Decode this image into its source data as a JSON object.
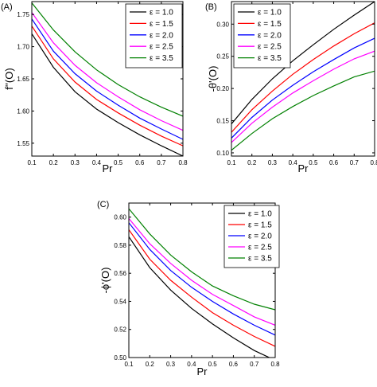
{
  "chart_data": [
    {
      "type": "line",
      "panel_label": "(A)",
      "xlabel": "Pr",
      "ylabel": "f''(O)",
      "xlim": [
        0.1,
        0.8
      ],
      "ylim": [
        1.53,
        1.77
      ],
      "xticks": [
        "0.1",
        "0.2",
        "0.3",
        "0.4",
        "0.5",
        "0.6",
        "0.7",
        "0.8"
      ],
      "yticks": [
        1.55,
        1.6,
        1.65,
        1.7,
        1.75
      ],
      "ytick_labels": [
        "1.55",
        "1.60",
        "1.65",
        "1.70",
        "1.75"
      ],
      "legend_position": "top-right",
      "x": [
        0.1,
        0.2,
        0.3,
        0.4,
        0.5,
        0.6,
        0.7,
        0.8
      ],
      "series": [
        {
          "name": "ε = 1.0",
          "color": "#000000",
          "values": [
            1.72,
            1.668,
            1.63,
            1.603,
            1.582,
            1.563,
            1.546,
            1.53
          ]
        },
        {
          "name": "ε = 1.5",
          "color": "#ff0000",
          "values": [
            1.732,
            1.681,
            1.645,
            1.618,
            1.597,
            1.578,
            1.561,
            1.546
          ]
        },
        {
          "name": "ε = 2.0",
          "color": "#0000ff",
          "values": [
            1.743,
            1.693,
            1.658,
            1.631,
            1.609,
            1.589,
            1.572,
            1.556
          ]
        },
        {
          "name": "ε = 2.5",
          "color": "#ff00ff",
          "values": [
            1.753,
            1.706,
            1.671,
            1.644,
            1.622,
            1.602,
            1.585,
            1.57
          ]
        },
        {
          "name": "ε = 3.5",
          "color": "#008000",
          "values": [
            1.768,
            1.726,
            1.692,
            1.664,
            1.641,
            1.622,
            1.606,
            1.592
          ]
        }
      ]
    },
    {
      "type": "line",
      "panel_label": "(B)",
      "xlabel": "Pr",
      "ylabel": "-θ'(O)",
      "xlim": [
        0.1,
        0.8
      ],
      "ylim": [
        0.095,
        0.335
      ],
      "xticks": [
        "0.1",
        "0.2",
        "0.3",
        "0.4",
        "0.5",
        "0.6",
        "0.7",
        "0.8"
      ],
      "yticks": [
        0.1,
        0.15,
        0.2,
        0.25,
        0.3
      ],
      "ytick_labels": [
        "0.10",
        "0.15",
        "0.20",
        "0.25",
        "0.30"
      ],
      "legend_position": "top-left",
      "x": [
        0.1,
        0.2,
        0.3,
        0.4,
        0.5,
        0.6,
        0.7,
        0.8
      ],
      "series": [
        {
          "name": "ε = 1.0",
          "color": "#000000",
          "values": [
            0.145,
            0.183,
            0.215,
            0.243,
            0.268,
            0.292,
            0.314,
            0.335
          ]
        },
        {
          "name": "ε = 1.5",
          "color": "#ff0000",
          "values": [
            0.132,
            0.167,
            0.196,
            0.222,
            0.245,
            0.266,
            0.285,
            0.302
          ]
        },
        {
          "name": "ε = 2.0",
          "color": "#0000ff",
          "values": [
            0.123,
            0.155,
            0.182,
            0.205,
            0.226,
            0.245,
            0.263,
            0.278
          ]
        },
        {
          "name": "ε = 2.5",
          "color": "#ff00ff",
          "values": [
            0.116,
            0.146,
            0.171,
            0.193,
            0.212,
            0.23,
            0.246,
            0.258
          ]
        },
        {
          "name": "ε = 3.5",
          "color": "#008000",
          "values": [
            0.104,
            0.13,
            0.153,
            0.172,
            0.189,
            0.204,
            0.218,
            0.227
          ]
        }
      ]
    },
    {
      "type": "line",
      "panel_label": "(C)",
      "xlabel": "Pr",
      "ylabel": "-ϕ'(O)",
      "xlim": [
        0.1,
        0.8
      ],
      "ylim": [
        0.5,
        0.61
      ],
      "xticks": [
        "0.1",
        "0.2",
        "0.3",
        "0.4",
        "0.5",
        "0.6",
        "0.7",
        "0.8"
      ],
      "yticks": [
        0.5,
        0.52,
        0.54,
        0.56,
        0.58,
        0.6
      ],
      "ytick_labels": [
        "0.50",
        "0.52",
        "0.54",
        "0.56",
        "0.58",
        "0.60"
      ],
      "legend_position": "top-right",
      "x": [
        0.1,
        0.2,
        0.3,
        0.4,
        0.5,
        0.6,
        0.7,
        0.8
      ],
      "series": [
        {
          "name": "ε = 1.0",
          "color": "#000000",
          "values": [
            0.586,
            0.564,
            0.548,
            0.535,
            0.524,
            0.514,
            0.505,
            0.498
          ]
        },
        {
          "name": "ε = 1.5",
          "color": "#ff0000",
          "values": [
            0.591,
            0.57,
            0.555,
            0.543,
            0.532,
            0.523,
            0.515,
            0.508
          ]
        },
        {
          "name": "ε = 2.0",
          "color": "#0000ff",
          "values": [
            0.596,
            0.577,
            0.562,
            0.55,
            0.54,
            0.531,
            0.523,
            0.516
          ]
        },
        {
          "name": "ε = 2.5",
          "color": "#ff00ff",
          "values": [
            0.599,
            0.581,
            0.567,
            0.555,
            0.545,
            0.537,
            0.529,
            0.523
          ]
        },
        {
          "name": "ε = 3.5",
          "color": "#008000",
          "values": [
            0.606,
            0.588,
            0.573,
            0.561,
            0.551,
            0.544,
            0.538,
            0.534
          ]
        }
      ]
    }
  ]
}
